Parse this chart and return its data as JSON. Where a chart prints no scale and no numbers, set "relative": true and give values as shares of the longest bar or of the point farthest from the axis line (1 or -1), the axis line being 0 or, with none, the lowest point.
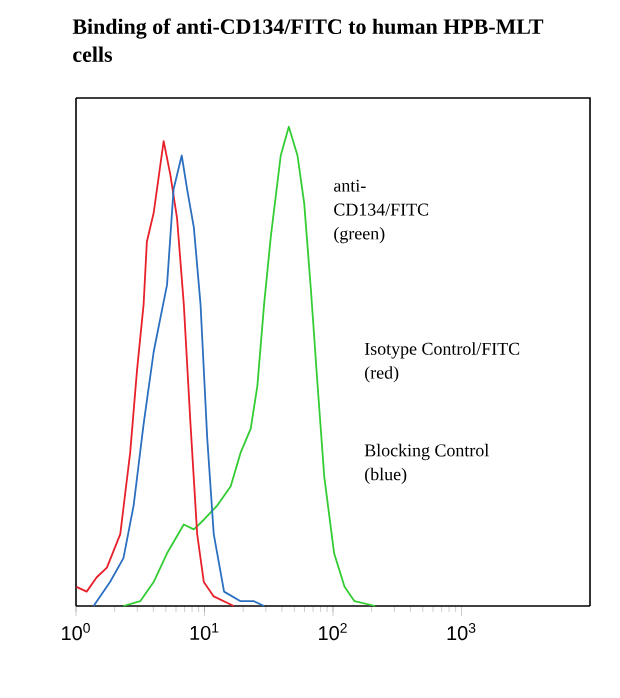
{
  "chart_data": {
    "type": "line",
    "title": "Binding of anti-CD134/FITC to human HPB-MLT cells",
    "relative": true,
    "log": "x",
    "xlim": [
      1,
      10000
    ],
    "xticks": [
      {
        "value": 1,
        "label": "10$^{0}$"
      },
      {
        "value": 10,
        "label": "10$^{1}$"
      },
      {
        "value": 100,
        "label": "10$^{2}$"
      },
      {
        "value": 1000,
        "label": "10$^{3}$"
      }
    ],
    "grid": false,
    "annotations": [
      "anti-CD134/FITC (green)",
      "Isotype Control/FITC (red)",
      "Blocking Control (blue)"
    ],
    "series": [
      {
        "color": "#33cc33",
        "x": [
          2.34,
          3.16,
          4.02,
          5.11,
          6.9,
          8.26,
          9.88,
          12.6,
          16.0,
          19.1,
          22.9,
          25.8,
          29.1,
          32.8,
          39.2,
          45.3,
          52.9,
          59.7,
          67.3,
          75.9,
          85.5,
          102,
          123,
          147,
          213
        ],
        "values": [
          0,
          0.01,
          0.05,
          0.11,
          0.17,
          0.16,
          0.18,
          0.21,
          0.25,
          0.32,
          0.37,
          0.46,
          0.63,
          0.77,
          0.94,
          1,
          0.94,
          0.84,
          0.66,
          0.46,
          0.27,
          0.11,
          0.04,
          0.01,
          0
        ]
      },
      {
        "color": "#e8202a",
        "x": [
          1.01,
          1.21,
          1.45,
          1.74,
          2.21,
          2.64,
          2.98,
          3.36,
          3.56,
          4.02,
          4.81,
          5.42,
          6.11,
          6.9,
          7.78,
          8.77,
          9.88,
          11.8,
          16.9
        ],
        "values": [
          0.04,
          0.03,
          0.06,
          0.08,
          0.15,
          0.32,
          0.49,
          0.63,
          0.76,
          0.82,
          0.97,
          0.9,
          0.81,
          0.63,
          0.38,
          0.15,
          0.05,
          0.02,
          0
        ]
      },
      {
        "color": "#2a6fc0",
        "x": [
          1.37,
          1.84,
          2.34,
          2.81,
          3.36,
          4.02,
          4.53,
          5.11,
          5.75,
          6.65,
          7.32,
          8.26,
          9.31,
          10.5,
          11.8,
          14.2,
          19.1,
          24.3,
          29.1
        ],
        "values": [
          0,
          0.05,
          0.1,
          0.21,
          0.38,
          0.53,
          0.6,
          0.67,
          0.87,
          0.94,
          0.87,
          0.79,
          0.63,
          0.35,
          0.15,
          0.03,
          0.01,
          0.01,
          0
        ]
      }
    ]
  }
}
